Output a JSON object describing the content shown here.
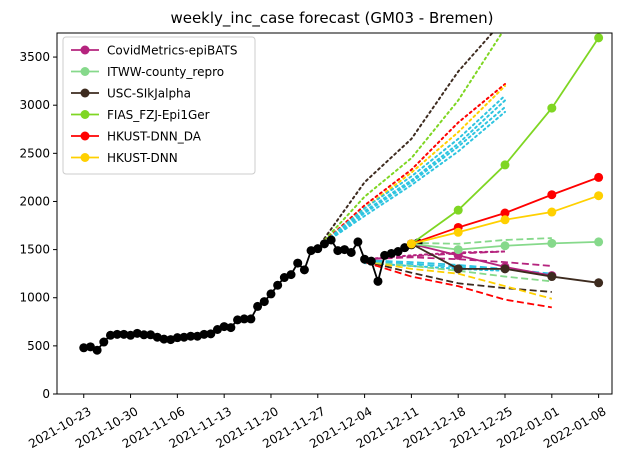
{
  "chart_data": {
    "type": "line",
    "title": "weekly_inc_case forecast (GM03 - Bremen)",
    "xlabel": "",
    "ylabel": "",
    "ylim": [
      0,
      3750
    ],
    "yticks": [
      0,
      500,
      1000,
      1500,
      2000,
      2500,
      3000,
      3500
    ],
    "xticks": [
      "2021-10-23",
      "2021-10-30",
      "2021-11-06",
      "2021-11-13",
      "2021-11-20",
      "2021-11-27",
      "2021-12-04",
      "2021-12-11",
      "2021-12-18",
      "2021-12-25",
      "2022-01-01",
      "2022-01-08"
    ],
    "xlim": [
      "2021-10-19",
      "2022-01-10"
    ],
    "legend_position": "upper-left",
    "grid": false,
    "observed": {
      "name": "",
      "color": "#000000",
      "points": [
        [
          "2021-10-23",
          480
        ],
        [
          "2021-10-24",
          490
        ],
        [
          "2021-10-25",
          455
        ],
        [
          "2021-10-26",
          540
        ],
        [
          "2021-10-27",
          610
        ],
        [
          "2021-10-28",
          620
        ],
        [
          "2021-10-29",
          620
        ],
        [
          "2021-10-30",
          610
        ],
        [
          "2021-10-31",
          630
        ],
        [
          "2021-11-01",
          615
        ],
        [
          "2021-11-02",
          615
        ],
        [
          "2021-11-03",
          590
        ],
        [
          "2021-11-04",
          570
        ],
        [
          "2021-11-05",
          565
        ],
        [
          "2021-11-06",
          585
        ],
        [
          "2021-11-07",
          590
        ],
        [
          "2021-11-08",
          600
        ],
        [
          "2021-11-09",
          600
        ],
        [
          "2021-11-10",
          620
        ],
        [
          "2021-11-11",
          625
        ],
        [
          "2021-11-12",
          670
        ],
        [
          "2021-11-13",
          700
        ],
        [
          "2021-11-14",
          690
        ],
        [
          "2021-11-15",
          770
        ],
        [
          "2021-11-16",
          780
        ],
        [
          "2021-11-17",
          780
        ],
        [
          "2021-11-18",
          910
        ],
        [
          "2021-11-19",
          960
        ],
        [
          "2021-11-20",
          1040
        ],
        [
          "2021-11-21",
          1130
        ],
        [
          "2021-11-22",
          1210
        ],
        [
          "2021-11-23",
          1240
        ],
        [
          "2021-11-24",
          1360
        ],
        [
          "2021-11-25",
          1290
        ],
        [
          "2021-11-26",
          1490
        ],
        [
          "2021-11-27",
          1510
        ],
        [
          "2021-11-28",
          1560
        ],
        [
          "2021-11-29",
          1600
        ],
        [
          "2021-11-30",
          1490
        ],
        [
          "2021-12-01",
          1500
        ],
        [
          "2021-12-02",
          1470
        ],
        [
          "2021-12-03",
          1580
        ],
        [
          "2021-12-04",
          1400
        ],
        [
          "2021-12-05",
          1380
        ],
        [
          "2021-12-06",
          1170
        ],
        [
          "2021-12-07",
          1440
        ],
        [
          "2021-12-08",
          1460
        ],
        [
          "2021-12-09",
          1480
        ],
        [
          "2021-12-10",
          1520
        ],
        [
          "2021-12-11",
          1550
        ],
        [
          "2021-12-12",
          1570
        ]
      ]
    },
    "series": [
      {
        "name": "CovidMetrics-epiBATS",
        "color": "#b5247e",
        "x": [
          "2021-12-11",
          "2021-12-18",
          "2021-12-25",
          "2022-01-01"
        ],
        "values": [
          1560,
          1440,
          1320,
          1230
        ]
      },
      {
        "name": "ITWW-county_repro",
        "color": "#86d98b",
        "x": [
          "2021-12-11",
          "2021-12-18",
          "2021-12-25",
          "2022-01-01",
          "2022-01-08"
        ],
        "values": [
          1560,
          1500,
          1540,
          1565,
          1580
        ]
      },
      {
        "name": "USC-SIkJalpha",
        "color": "#3d2b1f",
        "x": [
          "2021-12-11",
          "2021-12-18",
          "2021-12-25",
          "2022-01-01",
          "2022-01-08"
        ],
        "values": [
          1560,
          1300,
          1300,
          1220,
          1155
        ]
      },
      {
        "name": "FIAS_FZJ-Epi1Ger",
        "color": "#7fd623",
        "x": [
          "2021-12-11",
          "2021-12-18",
          "2021-12-25",
          "2022-01-01",
          "2022-01-08"
        ],
        "values": [
          1560,
          1910,
          2380,
          2970,
          3700
        ]
      },
      {
        "name": "HKUST-DNN_DA",
        "color": "#ff0000",
        "x": [
          "2021-12-11",
          "2021-12-18",
          "2021-12-25",
          "2022-01-01",
          "2022-01-08"
        ],
        "values": [
          1560,
          1730,
          1880,
          2070,
          2250
        ]
      },
      {
        "name": "HKUST-DNN",
        "color": "#ffd000",
        "x": [
          "2021-12-11",
          "2021-12-18",
          "2021-12-25",
          "2022-01-01",
          "2022-01-08"
        ],
        "values": [
          1560,
          1680,
          1810,
          1890,
          2060
        ]
      }
    ],
    "dashed_lines": [
      {
        "color": "#3d2b1f",
        "x": [
          "2021-12-04",
          "2021-12-11",
          "2021-12-18",
          "2021-12-25",
          "2022-01-01"
        ],
        "values": [
          1380,
          1260,
          1150,
          1100,
          1060
        ]
      },
      {
        "color": "#ff0000",
        "x": [
          "2021-12-04",
          "2021-12-11",
          "2021-12-18",
          "2021-12-25",
          "2022-01-01"
        ],
        "values": [
          1370,
          1220,
          1120,
          980,
          900
        ]
      },
      {
        "color": "#ffd000",
        "x": [
          "2021-12-04",
          "2021-12-11",
          "2021-12-18",
          "2021-12-25",
          "2022-01-01"
        ],
        "values": [
          1380,
          1300,
          1250,
          1120,
          990
        ]
      },
      {
        "color": "#86d98b",
        "x": [
          "2021-12-04",
          "2021-12-11",
          "2021-12-18",
          "2021-12-25",
          "2022-01-01"
        ],
        "values": [
          1380,
          1330,
          1280,
          1220,
          1170
        ]
      },
      {
        "color": "#2ec4e0",
        "x": [
          "2021-12-04",
          "2021-12-11",
          "2021-12-18",
          "2021-12-25",
          "2022-01-01"
        ],
        "values": [
          1390,
          1370,
          1340,
          1300,
          1250
        ]
      },
      {
        "color": "#2ec4e0",
        "x": [
          "2021-12-04",
          "2021-12-11",
          "2021-12-18",
          "2021-12-25"
        ],
        "values": [
          1390,
          1350,
          1320,
          1290
        ]
      },
      {
        "color": "#b5247e",
        "x": [
          "2021-12-04",
          "2021-12-11",
          "2021-12-18",
          "2021-12-25",
          "2022-01-01"
        ],
        "values": [
          1400,
          1420,
          1400,
          1370,
          1330
        ]
      },
      {
        "color": "#b5247e",
        "x": [
          "2021-12-04",
          "2021-12-11",
          "2021-12-18",
          "2021-12-25"
        ],
        "values": [
          1400,
          1430,
          1460,
          1480
        ]
      },
      {
        "color": "#86d98b",
        "x": [
          "2021-12-11",
          "2021-12-18",
          "2021-12-25",
          "2022-01-01"
        ],
        "values": [
          1570,
          1560,
          1600,
          1620
        ]
      }
    ],
    "dotted_lines": [
      {
        "color": "#3d2b1f",
        "x": [
          "2021-11-27",
          "2021-12-04",
          "2021-12-11",
          "2021-12-18",
          "2021-12-25"
        ],
        "values": [
          1520,
          2200,
          2650,
          3350,
          3900
        ]
      },
      {
        "color": "#7fd623",
        "x": [
          "2021-11-27",
          "2021-12-04",
          "2021-12-11",
          "2021-12-18",
          "2021-12-25"
        ],
        "values": [
          1520,
          2050,
          2450,
          3050,
          3800
        ]
      },
      {
        "color": "#ff0000",
        "x": [
          "2021-11-27",
          "2021-12-04",
          "2021-12-11",
          "2021-12-18",
          "2021-12-25"
        ],
        "values": [
          1520,
          1960,
          2330,
          2820,
          3220
        ]
      },
      {
        "color": "#ffd000",
        "x": [
          "2021-11-27",
          "2021-12-04",
          "2021-12-11",
          "2021-12-18",
          "2021-12-25"
        ],
        "values": [
          1520,
          1930,
          2300,
          2720,
          3200
        ]
      },
      {
        "color": "#2ec4e0",
        "x": [
          "2021-11-27",
          "2021-12-04",
          "2021-12-11",
          "2021-12-18",
          "2021-12-25"
        ],
        "values": [
          1520,
          1930,
          2260,
          2650,
          3100
        ]
      },
      {
        "color": "#2ec4e0",
        "x": [
          "2021-11-27",
          "2021-12-04",
          "2021-12-11",
          "2021-12-18",
          "2021-12-25"
        ],
        "values": [
          1520,
          1900,
          2220,
          2600,
          3050
        ]
      },
      {
        "color": "#2ec4e0",
        "x": [
          "2021-11-27",
          "2021-12-04",
          "2021-12-11",
          "2021-12-18",
          "2021-12-25"
        ],
        "values": [
          1520,
          1880,
          2200,
          2570,
          2980
        ]
      },
      {
        "color": "#2ec4e0",
        "x": [
          "2021-11-27",
          "2021-12-04",
          "2021-12-11",
          "2021-12-18",
          "2021-12-25"
        ],
        "values": [
          1520,
          1850,
          2170,
          2520,
          2930
        ]
      },
      {
        "color": "#2ec4e0",
        "x": [
          "2021-12-04",
          "2021-12-11",
          "2021-12-18",
          "2021-12-25"
        ],
        "values": [
          1360,
          1330,
          1300,
          1280
        ]
      },
      {
        "color": "#b5247e",
        "x": [
          "2021-12-04",
          "2021-12-11",
          "2021-12-18",
          "2021-12-25"
        ],
        "values": [
          1400,
          1440,
          1470,
          1480
        ]
      }
    ]
  }
}
